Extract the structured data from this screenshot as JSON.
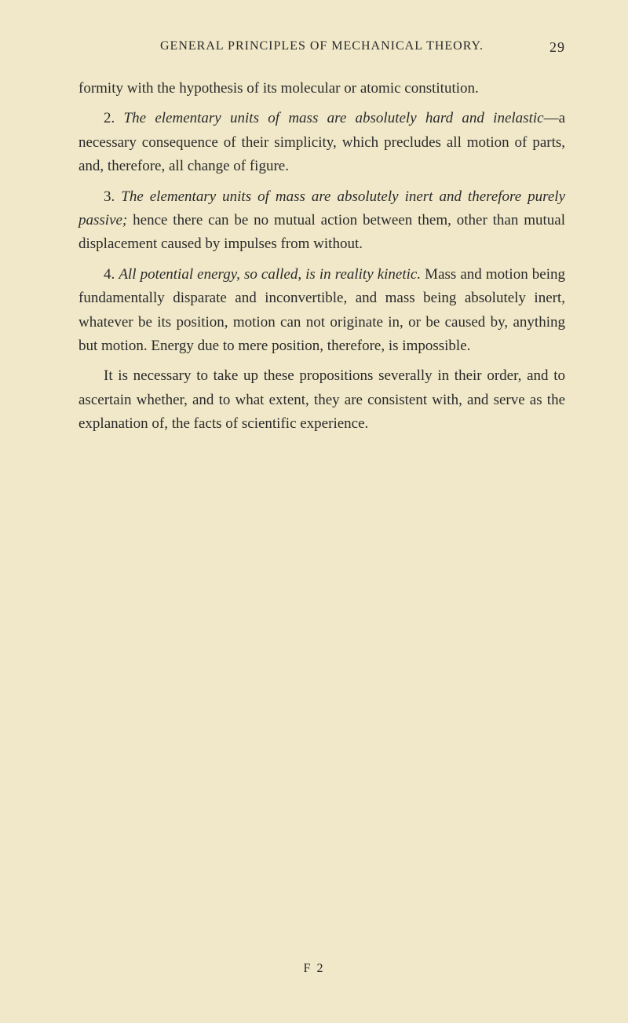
{
  "header": {
    "title": "GENERAL PRINCIPLES OF MECHANICAL THEORY.",
    "pageNumber": "29"
  },
  "paragraphs": {
    "p1": {
      "text": "formity with the hypothesis of its molecular or atomic constitution."
    },
    "p2": {
      "number": "2. ",
      "italicPart": "The elementary units of mass are absolutely hard and inelastic",
      "rest": "—a necessary consequence of their simplicity, which precludes all motion of parts, and, therefore, all change of figure."
    },
    "p3": {
      "number": "3. ",
      "italicPart": "The elementary units of mass are absolutely inert and therefore purely passive;",
      "rest": " hence there can be no mutual action between them, other than mutual displacement caused by impulses from without."
    },
    "p4": {
      "number": "4. ",
      "italicPart": "All potential energy, so called, is in reality kinetic.",
      "rest": " Mass and motion being fundamentally disparate and inconvertible, and mass being absolutely inert, whatever be its position, motion can not originate in, or be caused by, anything but motion. Energy due to mere position, therefore, is impossible."
    },
    "p5": {
      "text": "It is necessary to take up these propositions severally in their order, and to ascertain whether, and to what extent, they are consistent with, and serve as the explanation of, the facts of scientific experience."
    }
  },
  "footer": {
    "signature": "F 2"
  },
  "styling": {
    "backgroundColor": "#f0e8c8",
    "textColor": "#2a2a2a",
    "fontFamily": "Georgia, Times New Roman, serif",
    "bodyFontSize": 19,
    "headerFontSize": 16,
    "pageNumberFontSize": 18,
    "footerFontSize": 16,
    "lineHeight": 1.6,
    "textIndent": 32,
    "pageWidth": 800,
    "pageHeight": 1303
  }
}
